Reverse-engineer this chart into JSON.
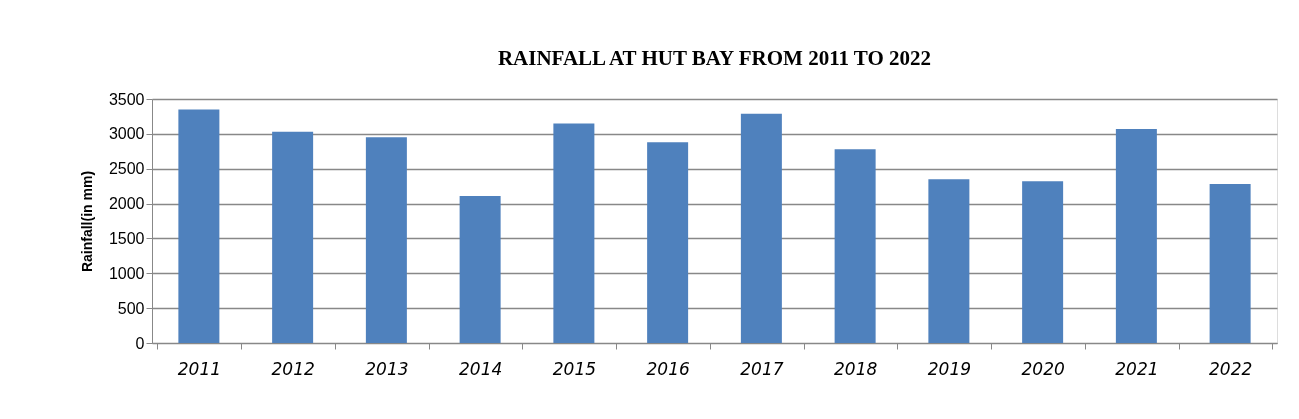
{
  "chart_data": {
    "type": "bar",
    "title": "RAINFALL AT HUT BAY FROM 2011 TO 2022",
    "ylabel": "Rainfall(in mm)",
    "categories": [
      "2011",
      "2012",
      "2013",
      "2014",
      "2015",
      "2016",
      "2017",
      "2018",
      "2019",
      "2020",
      "2021",
      "2022"
    ],
    "values": [
      3350,
      3030,
      2950,
      2110,
      3150,
      2880,
      3290,
      2780,
      2350,
      2320,
      3070,
      2280
    ],
    "color": "#4f81bd",
    "ylim": [
      0,
      3500
    ],
    "yticks": [
      0,
      500,
      1000,
      1500,
      2000,
      2500,
      3000,
      3500
    ],
    "grid": "y"
  }
}
